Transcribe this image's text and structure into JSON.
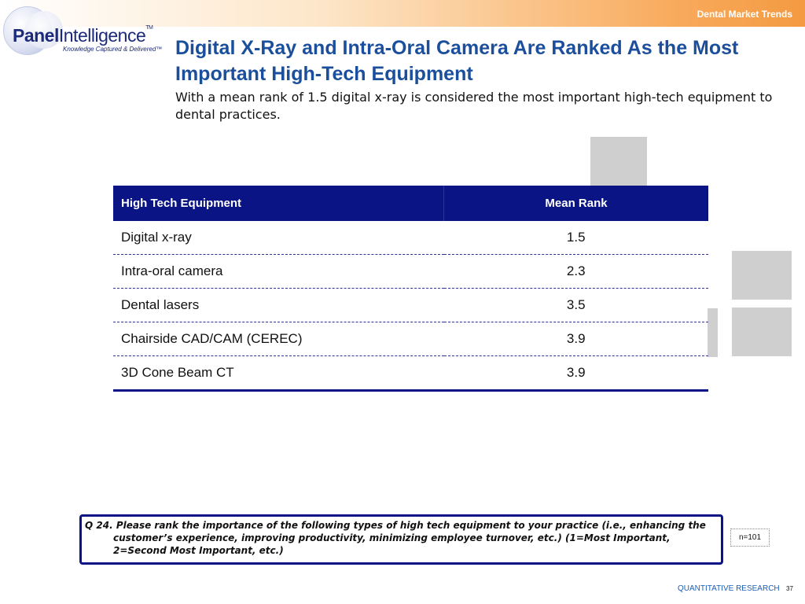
{
  "header": {
    "tag": "Dental Market Trends",
    "logo": {
      "word_bold": "Panel",
      "word_rest": "Intelligence",
      "tm": "TM",
      "tagline": "Knowledge Captured & Delivered™"
    }
  },
  "slide": {
    "title": "Digital X-Ray and Intra-Oral Camera Are Ranked As the Most Important High-Tech Equipment",
    "subtitle": "With a mean rank of 1.5 digital x-ray is considered the most important high-tech equipment to dental practices."
  },
  "table": {
    "headers": [
      "High Tech Equipment",
      "Mean Rank"
    ],
    "rows": [
      [
        "Digital x-ray",
        "1.5"
      ],
      [
        "Intra-oral camera",
        "2.3"
      ],
      [
        "Dental lasers",
        "3.5"
      ],
      [
        "Chairside CAD/CAM (CEREC)",
        "3.9"
      ],
      [
        "3D Cone Beam CT",
        "3.9"
      ]
    ]
  },
  "question": "Q 24. Please rank the importance of the following types of high tech equipment to your practice (i.e., enhancing the customer’s experience, improving productivity, minimizing employee turnover, etc.) (1=Most Important, 2=Second Most Important, etc.)",
  "sample": "n=101",
  "footer": {
    "label": "QUANTITATIVE RESEARCH",
    "page": "37"
  },
  "colors": {
    "title": "#1b4f9c",
    "table_header": "#0b1485",
    "accent_orange": "#f39a42",
    "deco_gray": "#d0cfcf"
  }
}
